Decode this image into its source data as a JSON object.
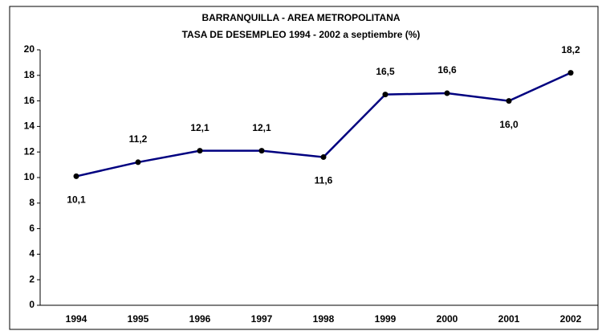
{
  "chart_data": {
    "type": "line",
    "title": "BARRANQUILLA - AREA METROPOLITANA",
    "subtitle": "TASA DE DESEMPLEO 1994 - 2002 a septiembre (%)",
    "categories": [
      "1994",
      "1995",
      "1996",
      "1997",
      "1998",
      "1999",
      "2000",
      "2001",
      "2002"
    ],
    "series": [
      {
        "name": "Tasa de desempleo",
        "color": "#000080",
        "values": [
          10.1,
          11.2,
          12.1,
          12.1,
          11.6,
          16.5,
          16.6,
          16.0,
          18.2
        ],
        "value_labels": [
          "10,1",
          "11,2",
          "12,1",
          "12,1",
          "11,6",
          "16,5",
          "16,6",
          "16,0",
          "18,2"
        ]
      }
    ],
    "ylim": [
      0,
      20
    ],
    "yticks": [
      0,
      2,
      4,
      6,
      8,
      10,
      12,
      14,
      16,
      18,
      20
    ],
    "marker_color": "#000000",
    "grid": false
  }
}
